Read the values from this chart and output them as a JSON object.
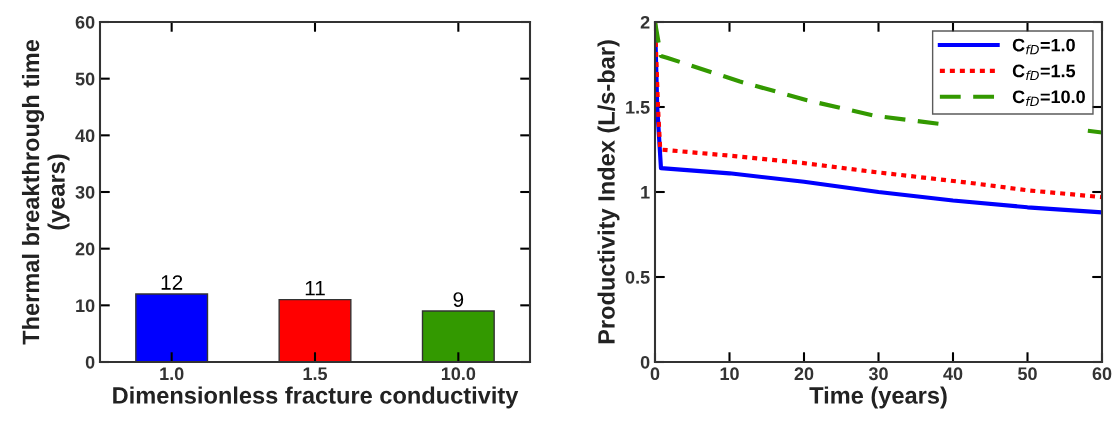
{
  "chart_data": [
    {
      "type": "bar",
      "xlabel": "Dimensionless fracture conductivity",
      "ylabel": "Thermal breakthrough time\n(years)",
      "categories": [
        "1.0",
        "1.5",
        "10.0"
      ],
      "values": [
        12,
        11,
        9
      ],
      "colors": [
        "#0000ff",
        "#ff0000",
        "#339900"
      ],
      "ylim": [
        0,
        60
      ],
      "yticks": [
        0,
        10,
        20,
        30,
        40,
        50,
        60
      ],
      "data_labels": true,
      "grid": false
    },
    {
      "type": "line",
      "xlabel": "Time (years)",
      "ylabel": "Productivity Index (L/s-bar)",
      "xlim": [
        0,
        60
      ],
      "xticks": [
        0,
        10,
        20,
        30,
        40,
        50,
        60
      ],
      "ylim": [
        0,
        2
      ],
      "yticks": [
        0,
        {
          "value": 0.5,
          "label": "0.5"
        },
        1,
        {
          "value": 1.5,
          "label": "1.5"
        },
        2
      ],
      "grid": false,
      "legend": "top right",
      "series": [
        {
          "name": "C$_{fD}$=1.0",
          "color": "#0000ff",
          "line_style": "solid",
          "x": [
            0,
            0.3,
            0.8,
            10,
            20,
            30,
            40,
            50,
            60
          ],
          "values": [
            2,
            1.5,
            1.14,
            1.11,
            1.06,
            1.0,
            0.95,
            0.91,
            0.88
          ]
        },
        {
          "name": "C$_{fD}$=1.5",
          "color": "#ff0000",
          "line_style": "dotted",
          "x": [
            0,
            0.4,
            0.7,
            11,
            20,
            29,
            43,
            50,
            60
          ],
          "values": [
            2,
            1.5,
            1.25,
            1.21,
            1.17,
            1.12,
            1.05,
            1.01,
            0.97
          ]
        },
        {
          "name": "C$_{fD}$=10.0",
          "color": "#339900",
          "line_style": "dashed",
          "x": [
            0,
            0.8,
            1.6,
            11.4,
            20.4,
            29.3,
            38.3,
            45,
            52,
            58.1,
            60
          ],
          "values": [
            2,
            1.8,
            1.79,
            1.65,
            1.54,
            1.45,
            1.4,
            null,
            null,
            1.36,
            1.35
          ]
        }
      ]
    }
  ]
}
